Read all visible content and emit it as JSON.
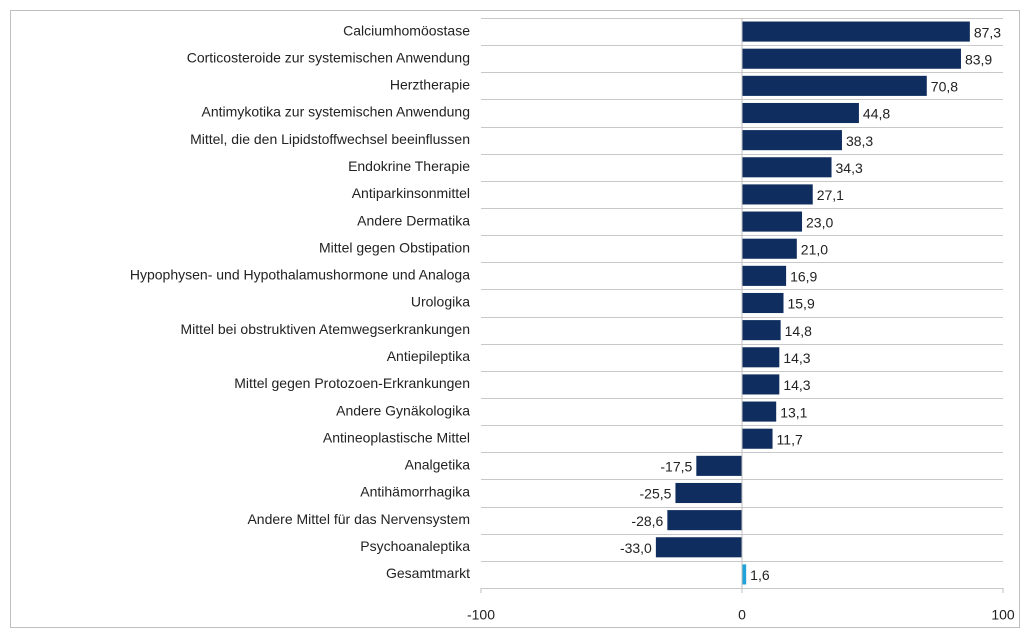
{
  "chart_data": {
    "type": "hbar",
    "categories": [
      "Calciumhomöostase",
      "Corticosteroide zur systemischen Anwendung",
      "Herztherapie",
      "Antimykotika zur systemischen Anwendung",
      "Mittel, die den Lipidstoffwechsel beeinflussen",
      "Endokrine Therapie",
      "Antiparkinsonmittel",
      "Andere Dermatika",
      "Mittel gegen Obstipation",
      "Hypophysen- und Hypothalamushormone und Analoga",
      "Urologika",
      "Mittel bei obstruktiven Atemwegserkrankungen",
      "Antiepileptika",
      "Mittel gegen Protozoen-Erkrankungen",
      "Andere Gynäkologika",
      "Antineoplastische Mittel",
      "Analgetika",
      "Antihämorrhagika",
      "Andere Mittel für das Nervensystem",
      "Psychoanaleptika",
      "Gesamtmarkt"
    ],
    "values": [
      87.3,
      83.9,
      70.8,
      44.8,
      38.3,
      34.3,
      27.1,
      23.0,
      21.0,
      16.9,
      15.9,
      14.8,
      14.3,
      14.3,
      13.1,
      11.7,
      -17.5,
      -25.5,
      -28.6,
      -33.0,
      1.6
    ],
    "value_labels": [
      "87,3",
      "83,9",
      "70,8",
      "44,8",
      "38,3",
      "34,3",
      "27,1",
      "23,0",
      "21,0",
      "16,9",
      "15,9",
      "14,8",
      "14,3",
      "14,3",
      "13,1",
      "11,7",
      "-17,5",
      "-25,5",
      "-28,6",
      "-33,0",
      "1,6"
    ],
    "colors": [
      "#0f2d5e",
      "#0f2d5e",
      "#0f2d5e",
      "#0f2d5e",
      "#0f2d5e",
      "#0f2d5e",
      "#0f2d5e",
      "#0f2d5e",
      "#0f2d5e",
      "#0f2d5e",
      "#0f2d5e",
      "#0f2d5e",
      "#0f2d5e",
      "#0f2d5e",
      "#0f2d5e",
      "#0f2d5e",
      "#0f2d5e",
      "#0f2d5e",
      "#0f2d5e",
      "#0f2d5e",
      "#1fa3d8"
    ],
    "xlim": [
      -100,
      100
    ],
    "xticks": [
      -100,
      0,
      100
    ],
    "grid": true
  }
}
